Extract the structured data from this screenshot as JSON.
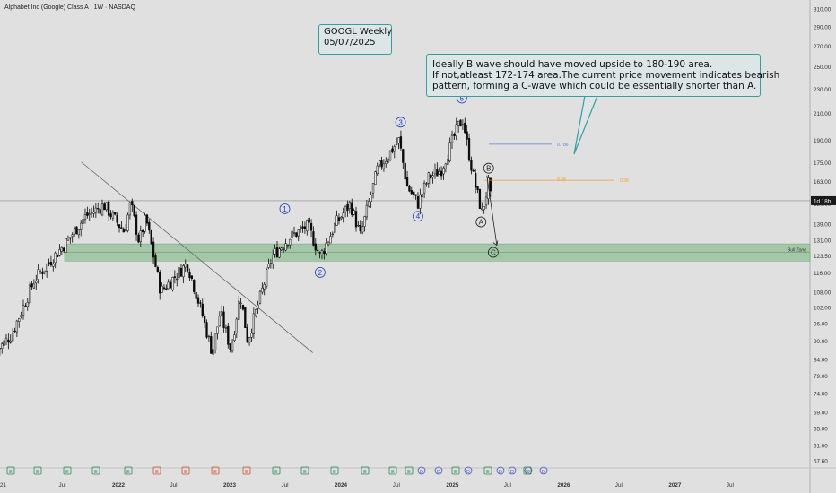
{
  "header": {
    "title": "Alphabet Inc (Google) Class A · 1W · NASDAQ"
  },
  "annotations": {
    "box1": [
      "GOOGL Weekly",
      "05/07/2025"
    ],
    "box2": [
      "Ideally B wave should have moved upside to 180-190 area.",
      "If not,atleast 172-174 area.The current price movement indicates bearish",
      "pattern, forming a C-wave which could be essentially shorter than A."
    ]
  },
  "colors": {
    "up": "#0a0a0a",
    "down": "#0a0a0a",
    "zone": "#8fbf94",
    "wave": "#1f3fbf",
    "fib786": "#5a7fd0",
    "fib38": "#f0a030",
    "accent": "#3a9c9c"
  },
  "chart_data": {
    "type": "candlestick",
    "symbol": "GOOGL",
    "timeframe": "1W",
    "y_scale": "log",
    "ylim": [
      56,
      320
    ],
    "y_ticks": [
      310.0,
      290.0,
      270.0,
      250.0,
      230.0,
      210.0,
      190.0,
      175.0,
      163.0,
      150.0,
      139.0,
      131.0,
      123.5,
      116.0,
      108.0,
      102.0,
      96.0,
      90.0,
      84.0,
      79.0,
      74.0,
      69.0,
      65.0,
      61.0,
      57.6
    ],
    "y_tick_labels": [
      "310.00",
      "290.00",
      "270.00",
      "250.00",
      "230.00",
      "210.00",
      "190.00",
      "175.00",
      "163.00",
      "150.00",
      "139.00",
      "131.00",
      "123.50",
      "116.00",
      "108.00",
      "102.00",
      "96.00",
      "90.00",
      "84.00",
      "79.00",
      "74.00",
      "69.00",
      "65.00",
      "61.00",
      "57.60"
    ],
    "x_labels": [
      {
        "label": "21",
        "date": "2021-01-01"
      },
      {
        "label": "Jul",
        "date": "2021-07-01"
      },
      {
        "label": "2022",
        "date": "2022-01-01"
      },
      {
        "label": "Jul",
        "date": "2022-07-01"
      },
      {
        "label": "2023",
        "date": "2023-01-01"
      },
      {
        "label": "Jul",
        "date": "2023-07-01"
      },
      {
        "label": "2024",
        "date": "2024-01-01"
      },
      {
        "label": "Jul",
        "date": "2024-07-01"
      },
      {
        "label": "2025",
        "date": "2025-01-01"
      },
      {
        "label": "Jul",
        "date": "2025-07-01"
      },
      {
        "label": "2026",
        "date": "2026-01-01"
      },
      {
        "label": "Jul",
        "date": "2026-07-01"
      },
      {
        "label": "2027",
        "date": "2027-01-01"
      },
      {
        "label": "Jul",
        "date": "2027-07-01"
      }
    ],
    "price_anchors": [
      {
        "date": "2020-12-01",
        "price": 87
      },
      {
        "date": "2021-01-15",
        "price": 92
      },
      {
        "date": "2021-04-01",
        "price": 113
      },
      {
        "date": "2021-07-15",
        "price": 130
      },
      {
        "date": "2021-09-15",
        "price": 143
      },
      {
        "date": "2021-11-15",
        "price": 149
      },
      {
        "date": "2022-01-20",
        "price": 135
      },
      {
        "date": "2022-02-10",
        "price": 150
      },
      {
        "date": "2022-03-10",
        "price": 130
      },
      {
        "date": "2022-04-01",
        "price": 142
      },
      {
        "date": "2022-05-20",
        "price": 108
      },
      {
        "date": "2022-08-15",
        "price": 120
      },
      {
        "date": "2022-10-01",
        "price": 100
      },
      {
        "date": "2022-11-05",
        "price": 86
      },
      {
        "date": "2022-12-01",
        "price": 100
      },
      {
        "date": "2023-01-05",
        "price": 87
      },
      {
        "date": "2023-02-05",
        "price": 107
      },
      {
        "date": "2023-03-01",
        "price": 90
      },
      {
        "date": "2023-05-20",
        "price": 123
      },
      {
        "date": "2023-07-15",
        "price": 132
      },
      {
        "date": "2023-09-15",
        "price": 138
      },
      {
        "date": "2023-10-25",
        "price": 123
      },
      {
        "date": "2023-12-15",
        "price": 139
      },
      {
        "date": "2024-02-01",
        "price": 150
      },
      {
        "date": "2024-03-05",
        "price": 133
      },
      {
        "date": "2024-04-30",
        "price": 170
      },
      {
        "date": "2024-07-10",
        "price": 190
      },
      {
        "date": "2024-08-05",
        "price": 160
      },
      {
        "date": "2024-09-10",
        "price": 150
      },
      {
        "date": "2024-10-15",
        "price": 165
      },
      {
        "date": "2024-11-25",
        "price": 170
      },
      {
        "date": "2025-01-20",
        "price": 200
      },
      {
        "date": "2025-02-05",
        "price": 205
      },
      {
        "date": "2025-02-20",
        "price": 185
      },
      {
        "date": "2025-03-15",
        "price": 162
      },
      {
        "date": "2025-04-08",
        "price": 145
      },
      {
        "date": "2025-04-18",
        "price": 152
      },
      {
        "date": "2025-04-30",
        "price": 162
      },
      {
        "date": "2025-05-07",
        "price": 152
      }
    ],
    "current_price_tag": "1d 18h",
    "current_price": 151.5,
    "zone": {
      "label": "Bull Zone",
      "low": 121,
      "high": 129
    },
    "fibonacci": [
      {
        "label": "0.786",
        "price": 187
      },
      {
        "label": "0.38",
        "price": 163.5
      }
    ],
    "elliott_waves": [
      {
        "label": "1",
        "date": "2023-07-01",
        "price": 147
      },
      {
        "label": "2",
        "date": "2023-10-25",
        "price": 116
      },
      {
        "label": "3",
        "date": "2024-07-15",
        "price": 203
      },
      {
        "label": "4",
        "date": "2024-09-10",
        "price": 143
      },
      {
        "label": "5",
        "date": "2025-02-01",
        "price": 222
      },
      {
        "label": "A",
        "date": "2025-04-05",
        "price": 140
      },
      {
        "label": "B",
        "date": "2025-04-30",
        "price": 171
      },
      {
        "label": "C",
        "date": "2025-05-15",
        "price": 125
      }
    ],
    "trendline": {
      "from": {
        "date": "2021-09-01",
        "price": 175
      },
      "to": {
        "date": "2023-10-01",
        "price": 86
      }
    },
    "event_markers": [
      "E",
      "E",
      "E",
      "E",
      "E",
      "E",
      "E",
      "E",
      "E",
      "E",
      "E",
      "E",
      "E",
      "E",
      "E",
      "D",
      "D",
      "E",
      "D",
      "E",
      "D",
      "D",
      "D",
      "D",
      "E"
    ]
  }
}
